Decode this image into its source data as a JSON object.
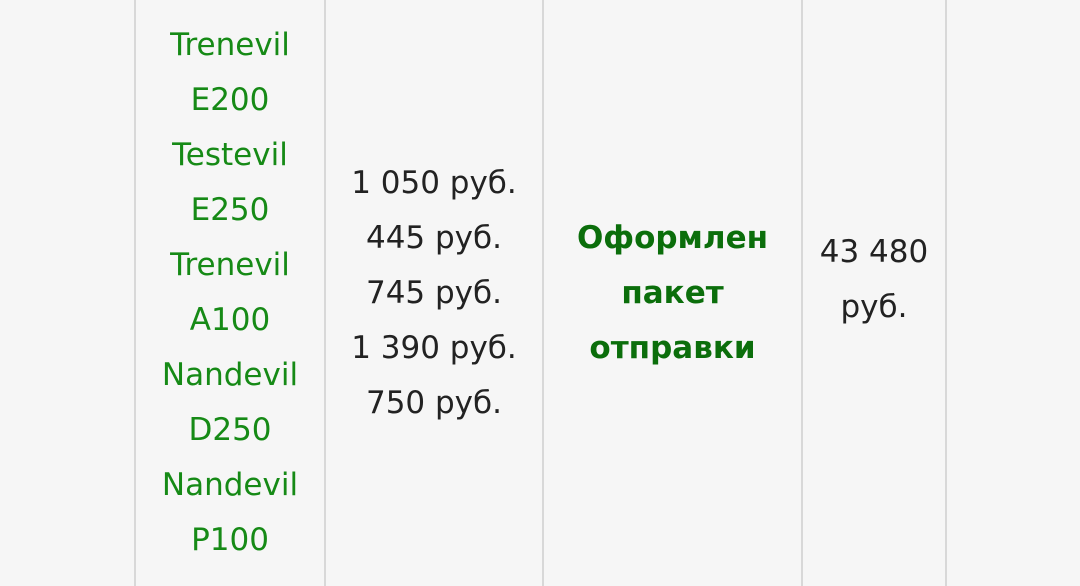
{
  "row": {
    "products": [
      "Trenevil E200",
      "Testevil E250",
      "Trenevil A100",
      "Nandevil D250",
      "Nandevil P100"
    ],
    "prices": [
      "1 050 руб.",
      "445 руб.",
      "745 руб.",
      "1 390 руб.",
      "750 руб."
    ],
    "status": "Оформлен пакет отправки",
    "total": "43 480 руб."
  },
  "colors": {
    "link": "#168a16",
    "status": "#0b6e0b",
    "background": "#f6f6f6",
    "border": "#d8d8d8"
  }
}
